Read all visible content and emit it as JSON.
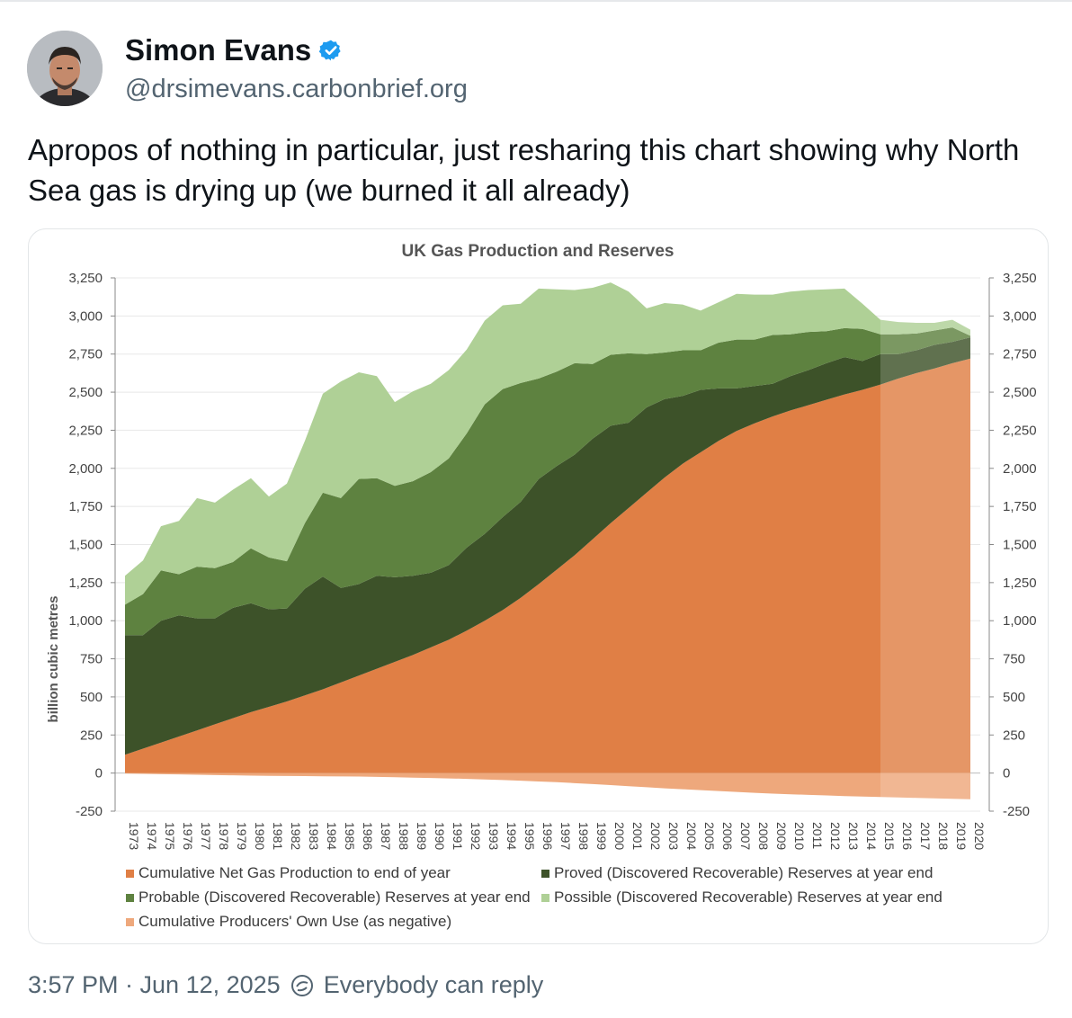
{
  "post": {
    "author_name": "Simon Evans",
    "handle": "@drsimevans.carbonbrief.org",
    "text": "Apropos of nothing in particular, just resharing this chart showing why North Sea gas is drying up (we burned it all already)",
    "timestamp": "3:57 PM · Jun 12, 2025",
    "reply_setting": "Everybody can reply",
    "verified_badge_color": "#1d9bf0"
  },
  "chart_data": {
    "type": "area",
    "title": "UK Gas Production and Reserves",
    "ylabel": "billion cubic metres",
    "xlabel": "",
    "ylim": [
      -250,
      3250
    ],
    "yticks": [
      "3,250",
      "3,000",
      "2,750",
      "2,500",
      "2,250",
      "2,000",
      "1,750",
      "1,500",
      "1,250",
      "1,000",
      "750",
      "500",
      "250",
      "0",
      "-250"
    ],
    "ytick_values": [
      3250,
      3000,
      2750,
      2500,
      2250,
      2000,
      1750,
      1500,
      1250,
      1000,
      750,
      500,
      250,
      0,
      -250
    ],
    "x": [
      "1973",
      "1974",
      "1975",
      "1976",
      "1977",
      "1978",
      "1979",
      "1980",
      "1981",
      "1982",
      "1983",
      "1984",
      "1985",
      "1986",
      "1987",
      "1988",
      "1989",
      "1990",
      "1991",
      "1992",
      "1993",
      "1994",
      "1995",
      "1996",
      "1997",
      "1998",
      "1999",
      "2000",
      "2001",
      "2002",
      "2003",
      "2004",
      "2005",
      "2006",
      "2007",
      "2008",
      "2009",
      "2010",
      "2011",
      "2012",
      "2013",
      "2014",
      "2015",
      "2016",
      "2017",
      "2018",
      "2019",
      "2020"
    ],
    "stacked": true,
    "shaded_from": "2015",
    "series": [
      {
        "name": "Cumulative Net Gas Production to end of year",
        "color": "#e07f45",
        "values": [
          120,
          160,
          200,
          240,
          280,
          320,
          360,
          400,
          435,
          470,
          510,
          550,
          595,
          640,
          685,
          730,
          775,
          825,
          875,
          935,
          1000,
          1070,
          1150,
          1240,
          1335,
          1430,
          1535,
          1640,
          1740,
          1840,
          1940,
          2030,
          2105,
          2180,
          2245,
          2295,
          2340,
          2380,
          2415,
          2450,
          2485,
          2515,
          2550,
          2590,
          2625,
          2655,
          2690,
          2720
        ]
      },
      {
        "name": "Proved (Discovered Recoverable) Reserves at year end",
        "color": "#3d5229",
        "values": [
          785,
          745,
          800,
          795,
          735,
          695,
          725,
          715,
          640,
          610,
          700,
          740,
          620,
          600,
          610,
          555,
          520,
          490,
          490,
          545,
          570,
          610,
          630,
          690,
          680,
          660,
          660,
          640,
          560,
          560,
          515,
          445,
          410,
          345,
          280,
          245,
          215,
          225,
          230,
          240,
          245,
          190,
          200,
          160,
          150,
          155,
          140,
          140
        ]
      },
      {
        "name": "Probable (Discovered Recoverable) Reserves at year end",
        "color": "#5e8240",
        "values": [
          200,
          270,
          330,
          270,
          340,
          330,
          300,
          360,
          340,
          310,
          430,
          550,
          590,
          690,
          640,
          600,
          620,
          660,
          700,
          750,
          850,
          840,
          780,
          660,
          620,
          600,
          490,
          465,
          455,
          350,
          305,
          300,
          260,
          300,
          320,
          305,
          320,
          275,
          250,
          210,
          190,
          210,
          130,
          130,
          110,
          95,
          95,
          10
        ]
      },
      {
        "name": "Possible (Discovered Recoverable) Reserves at year end",
        "color": "#afd096",
        "values": [
          190,
          220,
          290,
          350,
          450,
          430,
          475,
          460,
          400,
          510,
          540,
          650,
          765,
          700,
          670,
          550,
          590,
          580,
          580,
          550,
          550,
          550,
          520,
          590,
          540,
          480,
          500,
          475,
          405,
          300,
          325,
          300,
          260,
          265,
          300,
          295,
          265,
          280,
          275,
          275,
          260,
          165,
          95,
          80,
          70,
          50,
          50,
          40
        ]
      },
      {
        "name": "Cumulative Producers' Own Use (as negative)",
        "color": "#eea87c",
        "values": [
          -3,
          -5,
          -7,
          -9,
          -11,
          -13,
          -15,
          -17,
          -18,
          -19,
          -20,
          -21,
          -22,
          -23,
          -25,
          -27,
          -30,
          -32,
          -35,
          -38,
          -42,
          -46,
          -50,
          -55,
          -60,
          -66,
          -72,
          -79,
          -86,
          -93,
          -100,
          -106,
          -112,
          -118,
          -124,
          -130,
          -135,
          -139,
          -143,
          -147,
          -151,
          -154,
          -157,
          -160,
          -163,
          -166,
          -169,
          -172
        ]
      }
    ]
  }
}
